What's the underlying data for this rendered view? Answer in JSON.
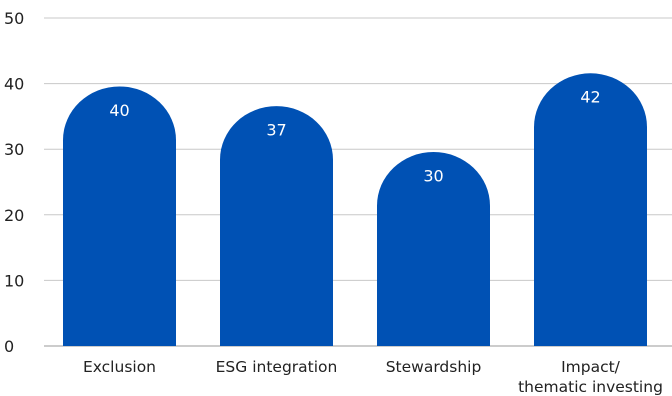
{
  "chart_data": {
    "type": "bar",
    "categories": [
      "Exclusion",
      "ESG integration",
      "Stewardship",
      "Impact/\nthematic investing"
    ],
    "values": [
      40,
      37,
      30,
      42
    ],
    "data_labels": [
      "40",
      "37",
      "30",
      "42"
    ],
    "title": "",
    "xlabel": "",
    "ylabel": "",
    "ylim": [
      0,
      50
    ],
    "yticks": [
      0,
      10,
      20,
      30,
      40,
      50
    ],
    "ytick_labels": [
      "0",
      "10",
      "20",
      "30",
      "40",
      "50"
    ],
    "grid": true,
    "legend": "none",
    "bar_color": "#0051b4"
  }
}
